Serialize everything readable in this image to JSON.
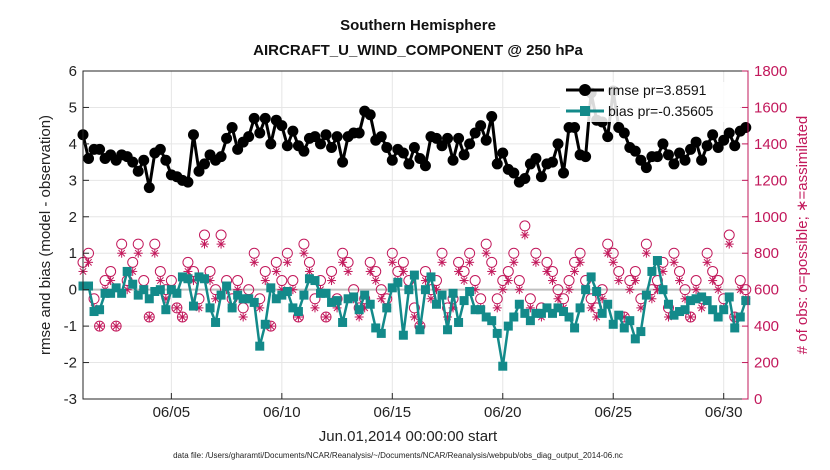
{
  "chart_data": {
    "type": "line",
    "title": "Southern Hemisphere",
    "subtitle": "AIRCRAFT_U_WIND_COMPONENT @ 250 hPa",
    "xlabel": "Jun.01,2014 00:00:00 start",
    "ylabel": "rmse and bias (model - observation)",
    "y2label": "# of obs: o=possible; ∗=assimilated",
    "footnote": "data file: /Users/gharamti/Documents/NCAR/Reanalysis/~/Documents/NCAR/Reanalysis/webpub/obs_diag_output_2014-06.nc",
    "xlim": [
      1.0,
      31.1
    ],
    "ylim": [
      -3,
      6
    ],
    "y2lim": [
      0,
      1800
    ],
    "xticks": [
      5,
      10,
      15,
      20,
      25,
      30
    ],
    "xtick_labels": [
      "06/05",
      "06/10",
      "06/15",
      "06/20",
      "06/25",
      "06/30"
    ],
    "yticks": [
      -3,
      -2,
      -1,
      0,
      1,
      2,
      3,
      4,
      5,
      6
    ],
    "y2ticks": [
      0,
      200,
      400,
      600,
      800,
      1000,
      1200,
      1400,
      1600,
      1800
    ],
    "grid": true,
    "legend": "top-right",
    "colors": {
      "rmse": "#000000",
      "bias": "#138a8a",
      "obs": "#c2185b",
      "zero": "#bfbfbf"
    },
    "x": [
      1.0,
      1.25,
      1.5,
      1.75,
      2.0,
      2.25,
      2.5,
      2.75,
      3.0,
      3.25,
      3.5,
      3.75,
      4.0,
      4.25,
      4.5,
      4.75,
      5.0,
      5.25,
      5.5,
      5.75,
      6.0,
      6.25,
      6.5,
      6.75,
      7.0,
      7.25,
      7.5,
      7.75,
      8.0,
      8.25,
      8.5,
      8.75,
      9.0,
      9.25,
      9.5,
      9.75,
      10.0,
      10.25,
      10.5,
      10.75,
      11.0,
      11.25,
      11.5,
      11.75,
      12.0,
      12.25,
      12.5,
      12.75,
      13.0,
      13.25,
      13.5,
      13.75,
      14.0,
      14.25,
      14.5,
      14.75,
      15.0,
      15.25,
      15.5,
      15.75,
      16.0,
      16.25,
      16.5,
      16.75,
      17.0,
      17.25,
      17.5,
      17.75,
      18.0,
      18.25,
      18.5,
      18.75,
      19.0,
      19.25,
      19.5,
      19.75,
      20.0,
      20.25,
      20.5,
      20.75,
      21.0,
      21.25,
      21.5,
      21.75,
      22.0,
      22.25,
      22.5,
      22.75,
      23.0,
      23.25,
      23.5,
      23.75,
      24.0,
      24.25,
      24.5,
      24.75,
      25.0,
      25.25,
      25.5,
      25.75,
      26.0,
      26.25,
      26.5,
      26.75,
      27.0,
      27.25,
      27.5,
      27.75,
      28.0,
      28.25,
      28.5,
      28.75,
      29.0,
      29.25,
      29.5,
      29.75,
      30.0,
      30.25,
      30.5,
      30.75,
      31.0
    ],
    "series": [
      {
        "name": "rmse pr=3.8591",
        "marker": "circle",
        "values": [
          4.25,
          3.6,
          3.85,
          3.85,
          3.6,
          3.7,
          3.55,
          3.7,
          3.65,
          3.5,
          3.25,
          3.55,
          2.8,
          3.75,
          3.85,
          3.55,
          3.15,
          3.1,
          3.0,
          2.95,
          4.25,
          3.25,
          3.45,
          3.7,
          3.55,
          3.65,
          4.15,
          4.45,
          3.85,
          4.05,
          4.2,
          4.7,
          4.3,
          4.7,
          4.0,
          4.65,
          4.5,
          3.95,
          4.35,
          3.95,
          3.8,
          4.15,
          4.2,
          4.0,
          4.25,
          3.9,
          4.2,
          3.5,
          4.2,
          4.3,
          4.3,
          4.9,
          4.8,
          4.1,
          4.2,
          3.9,
          3.55,
          3.85,
          3.75,
          3.45,
          3.9,
          3.6,
          3.4,
          4.2,
          4.15,
          3.95,
          4.15,
          3.55,
          4.15,
          3.7,
          4.0,
          4.3,
          4.5,
          4.1,
          4.75,
          3.45,
          3.75,
          3.3,
          3.2,
          2.95,
          3.05,
          3.45,
          3.6,
          3.1,
          3.45,
          3.5,
          4.0,
          3.2,
          4.45,
          4.45,
          3.7,
          3.65,
          5.4,
          4.65,
          4.6,
          4.2,
          5.45,
          4.45,
          4.3,
          3.9,
          3.8,
          3.55,
          3.35,
          3.65,
          3.65,
          4.0,
          3.7,
          3.45,
          3.75,
          3.55,
          3.85,
          4.05,
          3.55,
          3.95,
          4.25,
          3.9,
          4.1,
          4.3,
          3.95,
          4.35,
          4.45
        ]
      },
      {
        "name": "bias pr=-0.35605",
        "marker": "square",
        "values": [
          0.1,
          0.1,
          -0.6,
          -0.55,
          -0.1,
          -0.1,
          0.05,
          -0.1,
          0.5,
          0.15,
          -0.15,
          0.0,
          -0.25,
          -0.05,
          0.0,
          -0.55,
          0.0,
          -0.1,
          0.35,
          0.3,
          -0.45,
          0.35,
          0.3,
          -0.5,
          -0.9,
          -0.15,
          0.1,
          -0.5,
          -0.15,
          -0.25,
          -0.25,
          -0.35,
          -1.55,
          -0.95,
          0.05,
          -0.25,
          -0.15,
          -0.05,
          -0.5,
          -0.6,
          -0.15,
          0.3,
          0.25,
          -0.1,
          -0.1,
          -0.35,
          -0.3,
          -0.9,
          -0.25,
          -0.2,
          -0.55,
          -0.15,
          -0.4,
          -1.05,
          -1.2,
          -0.5,
          0.05,
          0.2,
          -1.25,
          0.0,
          0.4,
          -1.1,
          0.0,
          0.35,
          -0.4,
          -0.15,
          -1.1,
          -0.1,
          -0.9,
          -0.3,
          -0.05,
          -0.55,
          -0.55,
          -0.75,
          -0.85,
          -1.2,
          -2.1,
          -1.0,
          -0.75,
          -0.4,
          -0.65,
          -0.85,
          -0.65,
          -0.65,
          -0.5,
          -0.65,
          -0.5,
          -0.6,
          -0.75,
          -1.05,
          -0.5,
          0.0,
          0.35,
          -0.05,
          -0.65,
          -0.4,
          -0.95,
          -0.7,
          -1.05,
          -0.85,
          -1.35,
          -1.15,
          -0.15,
          0.5,
          0.8,
          0.0,
          -0.4,
          -0.7,
          -0.6,
          -0.55,
          -0.3,
          -0.25,
          -0.2,
          -0.3,
          -0.55,
          -0.75,
          -0.55,
          -0.2,
          -1.05,
          -0.75,
          -0.3
        ]
      },
      {
        "name": "obs possible",
        "marker": "circle-open",
        "y_axis": "right",
        "values": [
          750,
          800,
          550,
          400,
          650,
          700,
          400,
          850,
          650,
          750,
          850,
          650,
          450,
          850,
          700,
          600,
          650,
          500,
          450,
          750,
          700,
          550,
          900,
          700,
          600,
          900,
          650,
          550,
          650,
          500,
          600,
          800,
          550,
          700,
          400,
          750,
          650,
          800,
          650,
          450,
          850,
          750,
          550,
          650,
          450,
          700,
          550,
          800,
          750,
          600,
          500,
          550,
          750,
          700,
          600,
          550,
          800,
          700,
          750,
          650,
          500,
          400,
          700,
          600,
          650,
          800,
          500,
          550,
          750,
          700,
          800,
          650,
          550,
          850,
          750,
          550,
          650,
          700,
          800,
          650,
          950,
          550,
          800,
          500,
          750,
          700,
          600,
          550,
          650,
          750,
          800,
          650,
          550,
          500,
          600,
          850,
          800,
          700,
          450,
          650,
          700,
          550,
          850,
          600,
          650,
          750,
          500,
          800,
          700,
          600,
          450,
          650,
          550,
          800,
          700,
          650,
          550,
          900,
          450,
          650,
          600
        ]
      },
      {
        "name": "obs assimilated",
        "marker": "asterisk",
        "y_axis": "right",
        "values": [
          700,
          750,
          500,
          400,
          600,
          650,
          400,
          800,
          600,
          700,
          800,
          600,
          450,
          800,
          650,
          550,
          600,
          500,
          450,
          700,
          650,
          500,
          850,
          650,
          550,
          850,
          600,
          500,
          600,
          450,
          550,
          750,
          500,
          650,
          400,
          700,
          600,
          750,
          600,
          450,
          800,
          700,
          500,
          600,
          450,
          650,
          500,
          750,
          700,
          550,
          450,
          500,
          700,
          650,
          550,
          500,
          750,
          650,
          700,
          600,
          450,
          400,
          650,
          550,
          600,
          750,
          450,
          500,
          700,
          650,
          750,
          600,
          500,
          800,
          700,
          500,
          600,
          650,
          750,
          600,
          900,
          500,
          750,
          450,
          700,
          650,
          550,
          500,
          600,
          700,
          750,
          600,
          500,
          450,
          550,
          800,
          750,
          650,
          450,
          600,
          650,
          500,
          800,
          550,
          600,
          700,
          450,
          750,
          650,
          550,
          450,
          600,
          500,
          750,
          650,
          600,
          500,
          850,
          450,
          600,
          550
        ]
      }
    ]
  }
}
